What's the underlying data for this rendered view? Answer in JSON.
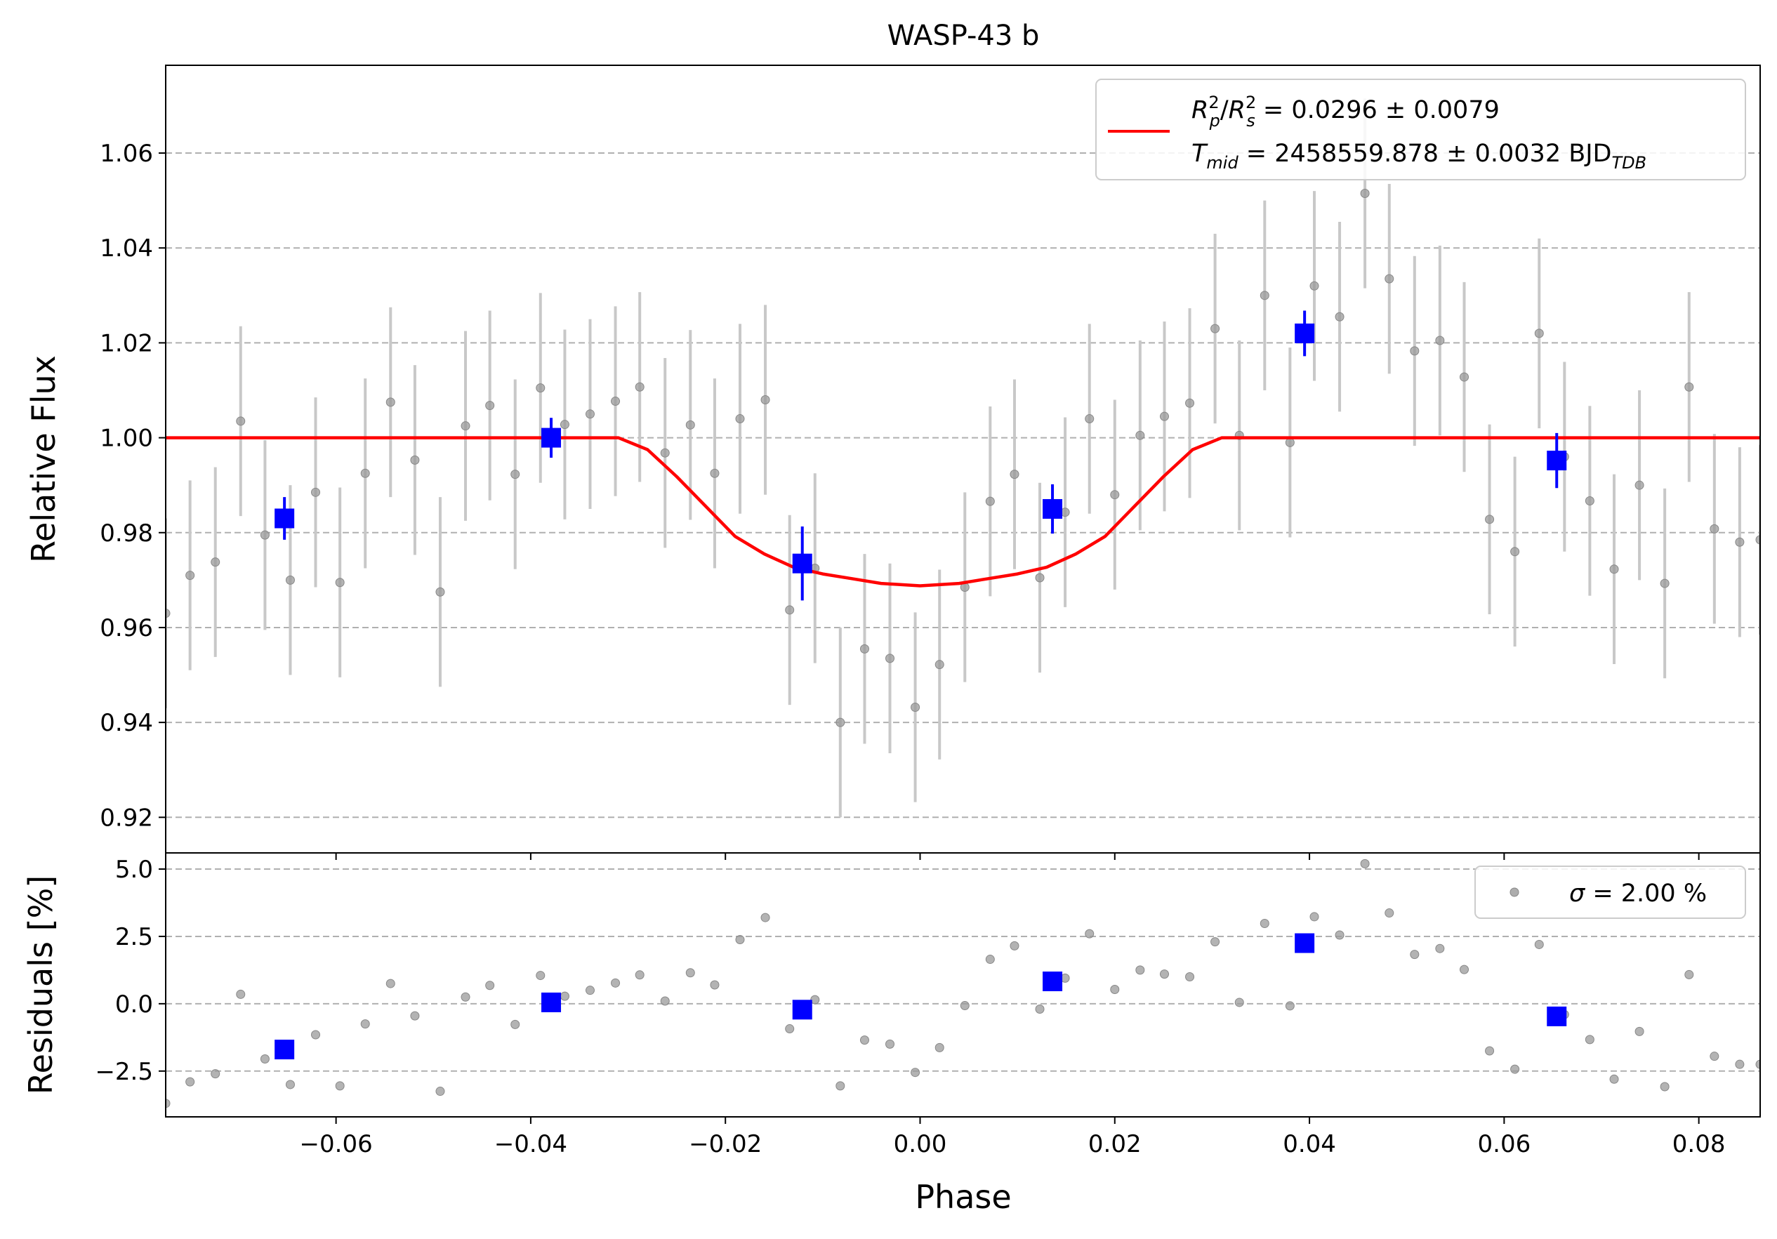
{
  "chart_data": [
    {
      "type": "scatter",
      "panel": "top",
      "title": "WASP-43 b",
      "xlabel": "",
      "ylabel": "Relative Flux",
      "xlim": [
        -0.0775,
        0.0863
      ],
      "ylim": [
        0.9125,
        1.0785
      ],
      "grid": "y dashed",
      "legend_position": "top-right",
      "x_ticks": [
        "−0.06",
        "−0.04",
        "−0.02",
        "0.00",
        "0.02",
        "0.04",
        "0.06",
        "0.08"
      ],
      "x_tick_values": [
        -0.06,
        -0.04,
        -0.02,
        0.0,
        0.02,
        0.04,
        0.06,
        0.08
      ],
      "y_ticks": [
        "0.92",
        "0.94",
        "0.96",
        "0.98",
        "1.00",
        "1.02",
        "1.04",
        "1.06"
      ],
      "y_tick_values": [
        0.92,
        0.94,
        0.96,
        0.98,
        1.0,
        1.02,
        1.04,
        1.06
      ],
      "legend": {
        "line1": {
          "a": "R",
          "a_sup": "2",
          "a_sub": "p",
          "b": "R",
          "b_sup": "2",
          "b_sub": "s",
          "rest": " = 0.0296 ± 0.0079"
        },
        "line2": {
          "a": "T",
          "a_sub": "mid",
          "rest": " = 2458559.878 ± 0.0032 BJD",
          "unit_sub": "TDB"
        }
      },
      "colors": {
        "raw": "#999999",
        "raw_err": "#c8c8c8",
        "binned": "#0000ff",
        "model": "#ff0000",
        "grid": "#b0b0b0"
      },
      "series": [
        {
          "name": "raw",
          "x": [
            -0.0775,
            -0.075,
            -0.0724,
            -0.0698,
            -0.0673,
            -0.0647,
            -0.0621,
            -0.0596,
            -0.057,
            -0.0544,
            -0.0519,
            -0.0493,
            -0.0467,
            -0.0442,
            -0.0416,
            -0.039,
            -0.0365,
            -0.0339,
            -0.0313,
            -0.0288,
            -0.0262,
            -0.0236,
            -0.0211,
            -0.0185,
            -0.0159,
            -0.0134,
            -0.0108,
            -0.0082,
            -0.0057,
            -0.0031,
            -0.0005,
            0.002,
            0.0046,
            0.0072,
            0.0097,
            0.0123,
            0.0149,
            0.0174,
            0.02,
            0.0226,
            0.0251,
            0.0277,
            0.0303,
            0.0328,
            0.0354,
            0.038,
            0.0405,
            0.0431,
            0.0457,
            0.0482,
            0.0508,
            0.0534,
            0.0559,
            0.0585,
            0.0611,
            0.0636,
            0.0662,
            0.0688,
            0.0713,
            0.0739,
            0.0765,
            0.079,
            0.0816,
            0.0842,
            0.0863
          ],
          "y": [
            0.963,
            0.971,
            0.9738,
            1.0035,
            0.9795,
            0.97,
            0.9885,
            0.9695,
            0.9925,
            1.0075,
            0.9953,
            0.9675,
            1.0025,
            1.0068,
            0.9923,
            1.0105,
            1.0028,
            1.005,
            1.0077,
            1.0107,
            0.9968,
            1.0027,
            0.9925,
            1.004,
            1.008,
            0.9637,
            0.9725,
            0.94,
            0.9555,
            0.9535,
            0.9432,
            0.9522,
            0.9685,
            0.9866,
            0.9923,
            0.9705,
            0.9843,
            1.004,
            0.988,
            1.0005,
            1.0045,
            1.0073,
            1.023,
            1.0005,
            1.03,
            0.999,
            1.032,
            1.0255,
            1.0515,
            1.0335,
            1.0183,
            1.0205,
            1.0128,
            0.9828,
            0.976,
            1.022,
            0.996,
            0.9867,
            0.9723,
            0.99,
            0.9693,
            1.0107,
            0.9808,
            0.978,
            0.9785
          ],
          "yerr": 0.02
        },
        {
          "name": "binned",
          "x": [
            -0.0653,
            -0.0379,
            -0.0121,
            0.0136,
            0.0395,
            0.0654
          ],
          "y": [
            0.983,
            1.0,
            0.9735,
            0.985,
            1.022,
            0.9952
          ],
          "yerr": [
            0.0045,
            0.0042,
            0.0078,
            0.0052,
            0.0048,
            0.0058
          ]
        },
        {
          "name": "model",
          "x": [
            -0.0775,
            -0.031,
            -0.028,
            -0.025,
            -0.022,
            -0.019,
            -0.016,
            -0.013,
            -0.01,
            -0.007,
            -0.004,
            0.0,
            0.004,
            0.007,
            0.01,
            0.013,
            0.016,
            0.019,
            0.022,
            0.025,
            0.028,
            0.031,
            0.0863
          ],
          "y": [
            1.0,
            1.0,
            0.9975,
            0.9918,
            0.9855,
            0.9792,
            0.9755,
            0.9727,
            0.9713,
            0.9703,
            0.9693,
            0.9688,
            0.9693,
            0.9703,
            0.9713,
            0.9727,
            0.9755,
            0.9792,
            0.9855,
            0.9918,
            0.9975,
            1.0,
            1.0
          ]
        }
      ]
    },
    {
      "type": "scatter",
      "panel": "bottom",
      "xlabel": "Phase",
      "ylabel": "Residuals [%]",
      "xlim": [
        -0.0775,
        0.0863
      ],
      "ylim": [
        -4.2,
        5.6
      ],
      "grid": "y dashed",
      "legend_position": "top-right",
      "y_ticks": [
        "−2.5",
        "0.0",
        "2.5",
        "5.0"
      ],
      "y_tick_values": [
        -2.5,
        0.0,
        2.5,
        5.0
      ],
      "legend": {
        "sym": "σ",
        "rest": " = 2.00 %"
      },
      "series": [
        {
          "name": "raw residuals",
          "x": [
            -0.0775,
            -0.075,
            -0.0724,
            -0.0698,
            -0.0673,
            -0.0647,
            -0.0621,
            -0.0596,
            -0.057,
            -0.0544,
            -0.0519,
            -0.0493,
            -0.0467,
            -0.0442,
            -0.0416,
            -0.039,
            -0.0365,
            -0.0339,
            -0.0313,
            -0.0288,
            -0.0262,
            -0.0236,
            -0.0211,
            -0.0185,
            -0.0159,
            -0.0134,
            -0.0108,
            -0.0082,
            -0.0057,
            -0.0031,
            -0.0005,
            0.002,
            0.0046,
            0.0072,
            0.0097,
            0.0123,
            0.0149,
            0.0174,
            0.02,
            0.0226,
            0.0251,
            0.0277,
            0.0303,
            0.0328,
            0.0354,
            0.038,
            0.0405,
            0.0431,
            0.0457,
            0.0482,
            0.0508,
            0.0534,
            0.0559,
            0.0585,
            0.0611,
            0.0636,
            0.0662,
            0.0688,
            0.0713,
            0.0739,
            0.0765,
            0.079,
            0.0816,
            0.0842,
            0.0863
          ],
          "y": [
            -3.7,
            -2.9,
            -2.6,
            0.35,
            -2.05,
            -3.0,
            -1.15,
            -3.05,
            -0.75,
            0.75,
            -0.45,
            -3.25,
            0.25,
            0.68,
            -0.77,
            1.05,
            0.28,
            0.5,
            0.77,
            1.07,
            0.1,
            1.15,
            0.7,
            2.38,
            3.2,
            -0.93,
            0.15,
            -3.05,
            -1.35,
            -1.5,
            -2.55,
            -1.63,
            -0.07,
            1.65,
            2.15,
            -0.2,
            0.95,
            2.6,
            0.53,
            1.25,
            1.1,
            1.0,
            2.3,
            0.05,
            2.98,
            -0.08,
            3.23,
            2.55,
            5.2,
            3.37,
            1.83,
            2.05,
            1.27,
            -1.75,
            -2.43,
            2.2,
            -0.4,
            -1.33,
            -2.8,
            -1.03,
            -3.08,
            1.08,
            -1.95,
            -2.25,
            -2.25
          ]
        },
        {
          "name": "binned residuals",
          "x": [
            -0.0653,
            -0.0379,
            -0.0121,
            0.0136,
            0.0395,
            0.0654
          ],
          "y": [
            -1.7,
            0.05,
            -0.22,
            0.83,
            2.25,
            -0.47
          ]
        }
      ]
    }
  ]
}
